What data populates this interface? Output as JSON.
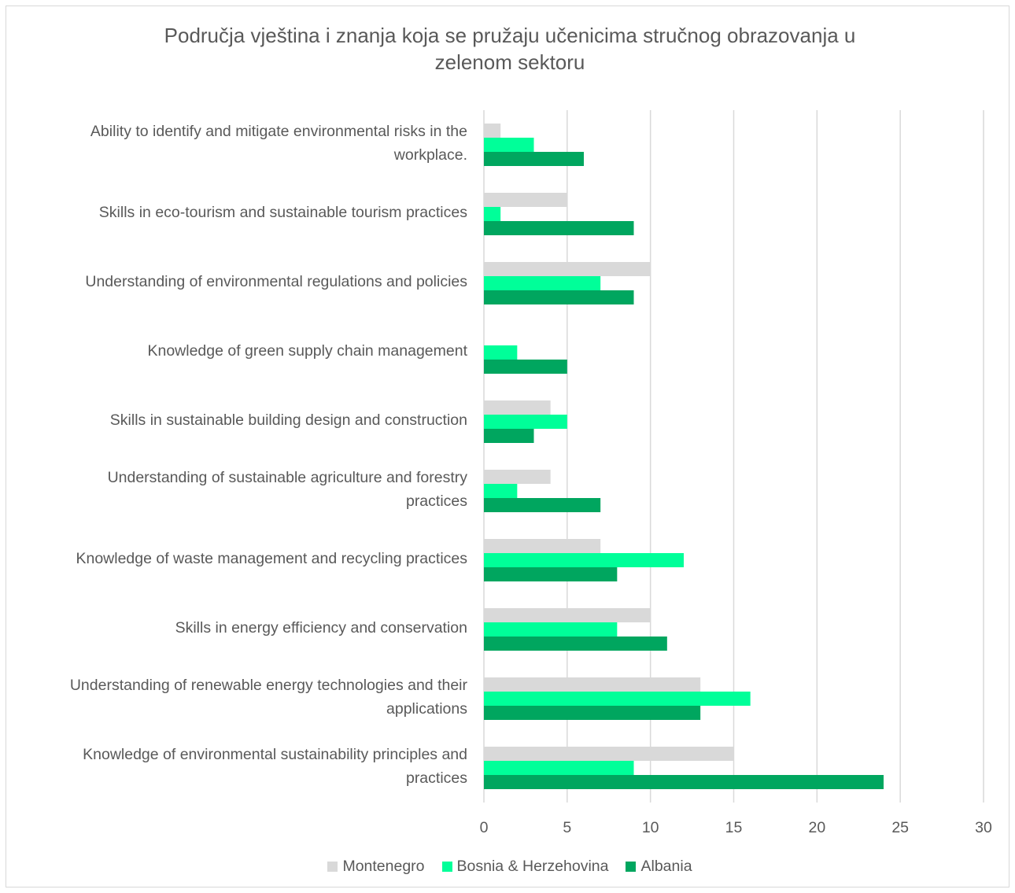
{
  "chart_data": {
    "type": "bar",
    "orientation": "horizontal",
    "title": "Područja vještina i znanja koja se pružaju učenicima stručnog obrazovanja u zelenom sektoru",
    "title_lines": [
      "Područja vještina i znanja koja se pružaju učenicima stručnog obrazovanja u",
      "zelenom sektoru"
    ],
    "categories": [
      "Ability to identify and mitigate environmental risks in the workplace.",
      "Skills in eco-tourism and sustainable tourism practices",
      "Understanding of environmental regulations and policies",
      "Knowledge of green supply chain management",
      "Skills in sustainable building design and construction",
      "Understanding of sustainable agriculture and forestry practices",
      "Knowledge of waste management and recycling practices",
      "Skills in energy efficiency and conservation",
      "Understanding of renewable energy technologies and their applications",
      "Knowledge of environmental sustainability principles and practices"
    ],
    "category_lines": [
      [
        "Ability to identify and mitigate environmental risks in the",
        "workplace."
      ],
      [
        "Skills in eco-tourism and sustainable tourism practices"
      ],
      [
        "Understanding of environmental regulations and policies"
      ],
      [
        "Knowledge of green supply chain management"
      ],
      [
        "Skills in sustainable building design and construction"
      ],
      [
        "Understanding of sustainable agriculture and forestry",
        "practices"
      ],
      [
        "Knowledge of waste management and recycling practices"
      ],
      [
        "Skills in energy efficiency and conservation"
      ],
      [
        "Understanding of renewable energy technologies and their",
        "applications"
      ],
      [
        "Knowledge of environmental sustainability principles and",
        "practices"
      ]
    ],
    "series": [
      {
        "name": "Montenegro",
        "color": "#d9d9d9",
        "values": [
          1,
          5,
          10,
          0,
          4,
          4,
          7,
          10,
          13,
          15
        ]
      },
      {
        "name": "Bosnia & Herzehovina",
        "color": "#00ff99",
        "values": [
          3,
          1,
          7,
          2,
          5,
          2,
          12,
          8,
          16,
          9
        ]
      },
      {
        "name": "Albania",
        "color": "#00a65f",
        "values": [
          6,
          9,
          9,
          5,
          3,
          7,
          8,
          11,
          13,
          24
        ]
      }
    ],
    "xlim": [
      0,
      30
    ],
    "xticks": [
      0,
      5,
      10,
      15,
      20,
      25,
      30
    ],
    "grid": true,
    "legend_position": "bottom"
  }
}
